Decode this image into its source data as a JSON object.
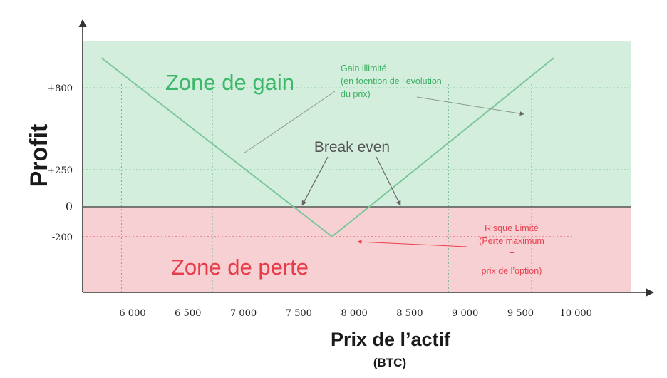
{
  "chart_data": {
    "type": "line",
    "ylabel": "Profit",
    "xlabel": "Prix de l’actif",
    "xlabel_sub": "(BTC)",
    "x_ticks": [
      6000,
      6500,
      7000,
      7500,
      8000,
      8500,
      9000,
      9500,
      10000
    ],
    "x_tick_labels": [
      "6 000",
      "6 500",
      "7 000",
      "7 500",
      "8 000",
      "8 500",
      "9 000",
      "9 500",
      "10 000"
    ],
    "y_ticks": [
      800,
      250,
      0,
      -200
    ],
    "y_tick_labels": [
      "+800",
      "+250",
      "0",
      "-200"
    ],
    "xlim": [
      5550,
      10500
    ],
    "ylim": [
      -450,
      1000
    ],
    "series": [
      {
        "values_x": [
          5720,
          7800,
          9800
        ],
        "values_y": [
          1000,
          -200,
          1000
        ],
        "color": "#7cc79a"
      }
    ],
    "break_even_points": [
      7420,
      8280
    ],
    "reference_lines": {
      "horizontal": [
        800,
        250,
        -200
      ],
      "vertical": [
        5900,
        6720,
        8850,
        9600
      ]
    },
    "zones": {
      "gain": {
        "label": "Zone de gain",
        "color": "#d4eedd",
        "text_color": "#3db86a"
      },
      "loss": {
        "label": "Zone de perte",
        "color": "#f6d0d3",
        "text_color": "#e83a48"
      }
    },
    "annotations": {
      "gain": [
        "Gain illimité",
        "(en focntion de l’evolution",
        "du prix)"
      ],
      "break_even": "Break even",
      "risk": [
        "Risque Limité",
        "(Perte maximum",
        "=",
        "prix de l’option)"
      ]
    }
  }
}
